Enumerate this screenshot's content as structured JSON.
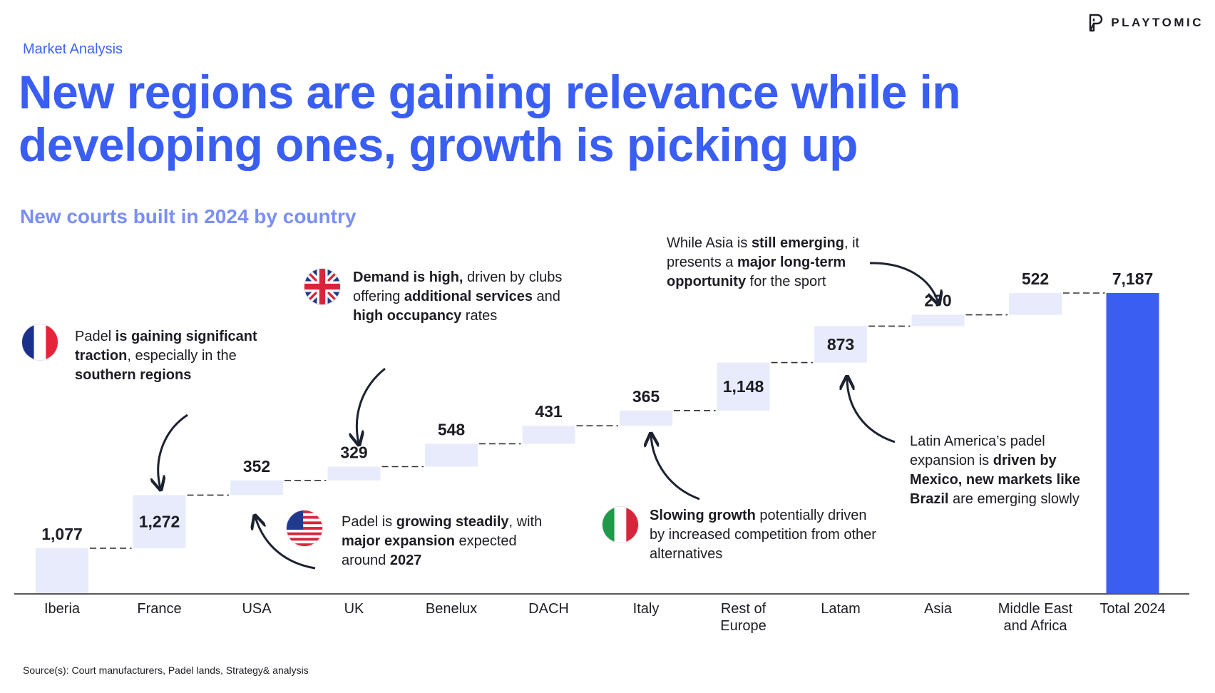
{
  "header": {
    "section_label": "Market Analysis",
    "title": "New regions are gaining relevance while in developing ones, growth is picking up",
    "brand": "PLAYTOMIC",
    "brand_icon": "playtomic-logo-icon"
  },
  "chart_data": {
    "type": "bar",
    "subtype": "waterfall",
    "title": "New courts built in 2024 by country",
    "xlabel": "",
    "ylabel": "",
    "categories": [
      "Iberia",
      "France",
      "USA",
      "UK",
      "Benelux",
      "DACH",
      "Italy",
      "Rest of Europe",
      "Latam",
      "Asia",
      "Middle East and Africa",
      "Total 2024"
    ],
    "values": [
      1077,
      1272,
      352,
      329,
      548,
      431,
      365,
      1148,
      873,
      270,
      522,
      7187
    ],
    "value_labels": [
      "1,077",
      "1,272",
      "352",
      "329",
      "548",
      "431",
      "365",
      "1,148",
      "873",
      "270",
      "522",
      "7,187"
    ],
    "total_index": 11,
    "ylim": [
      0,
      7187
    ],
    "grid": false,
    "legend": "none",
    "colors": {
      "increment": "#e8ebfb",
      "total": "#3a5ef2",
      "connector": "#333333",
      "axis": "#222222"
    }
  },
  "annotations": {
    "france": {
      "flag": "france-flag-icon",
      "parts": [
        [
          "Padel ",
          false
        ],
        [
          "is gaining significant traction",
          true
        ],
        [
          ", especially in the ",
          false
        ],
        [
          "southern regions",
          true
        ]
      ]
    },
    "uk": {
      "flag": "uk-flag-icon",
      "parts": [
        [
          "Demand is high,",
          true
        ],
        [
          " driven by clubs offering ",
          false
        ],
        [
          "additional services",
          true
        ],
        [
          " and ",
          false
        ],
        [
          "high occupancy",
          true
        ],
        [
          " rates",
          false
        ]
      ]
    },
    "usa": {
      "flag": "usa-flag-icon",
      "parts": [
        [
          "Padel is ",
          false
        ],
        [
          "growing steadily",
          true
        ],
        [
          ", with ",
          false
        ],
        [
          "major expansion",
          true
        ],
        [
          " expected around ",
          false
        ],
        [
          "2027",
          true
        ]
      ]
    },
    "italy": {
      "flag": "italy-flag-icon",
      "parts": [
        [
          "Slowing growth",
          true
        ],
        [
          " potentially driven by increased competition from other alternatives",
          false
        ]
      ]
    },
    "asia": {
      "parts": [
        [
          "While Asia is ",
          false
        ],
        [
          "still emerging",
          true
        ],
        [
          ", it presents a ",
          false
        ],
        [
          "major long-term opportunity",
          true
        ],
        [
          " for the sport",
          false
        ]
      ]
    },
    "latam": {
      "parts": [
        [
          "Latin America’s padel expansion is ",
          false
        ],
        [
          "driven by Mexico, new markets like Brazil",
          true
        ],
        [
          " are emerging slowly",
          false
        ]
      ]
    }
  },
  "footer": {
    "source": "Source(s): Court manufacturers, Padel lands, Strategy& analysis"
  }
}
